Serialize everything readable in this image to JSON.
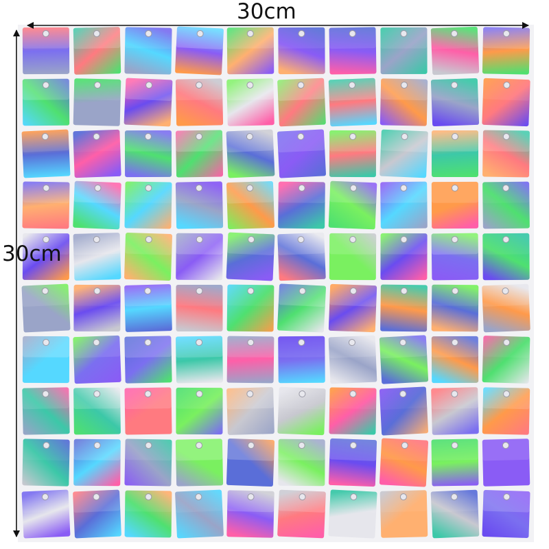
{
  "image": {
    "description_icon": "holographic-sequin-panel-photo",
    "background_color": "#ffffff",
    "grid": {
      "rows": 10,
      "columns": 10
    },
    "tile_palette": [
      "#ff9a4a",
      "#7b6ff0",
      "#8a5cf5",
      "#9aa4c8",
      "#5a6ed8",
      "#7af060",
      "#4fe070",
      "#55d8ff",
      "#ff7a80",
      "#c8c8d0",
      "#e6e6ec",
      "#ff5fa8",
      "#6a4cf0",
      "#3cc8a8",
      "#ffb070"
    ]
  },
  "measurements": {
    "width_label": "30cm",
    "height_label": "30cm",
    "arrow_color": "#111111"
  }
}
